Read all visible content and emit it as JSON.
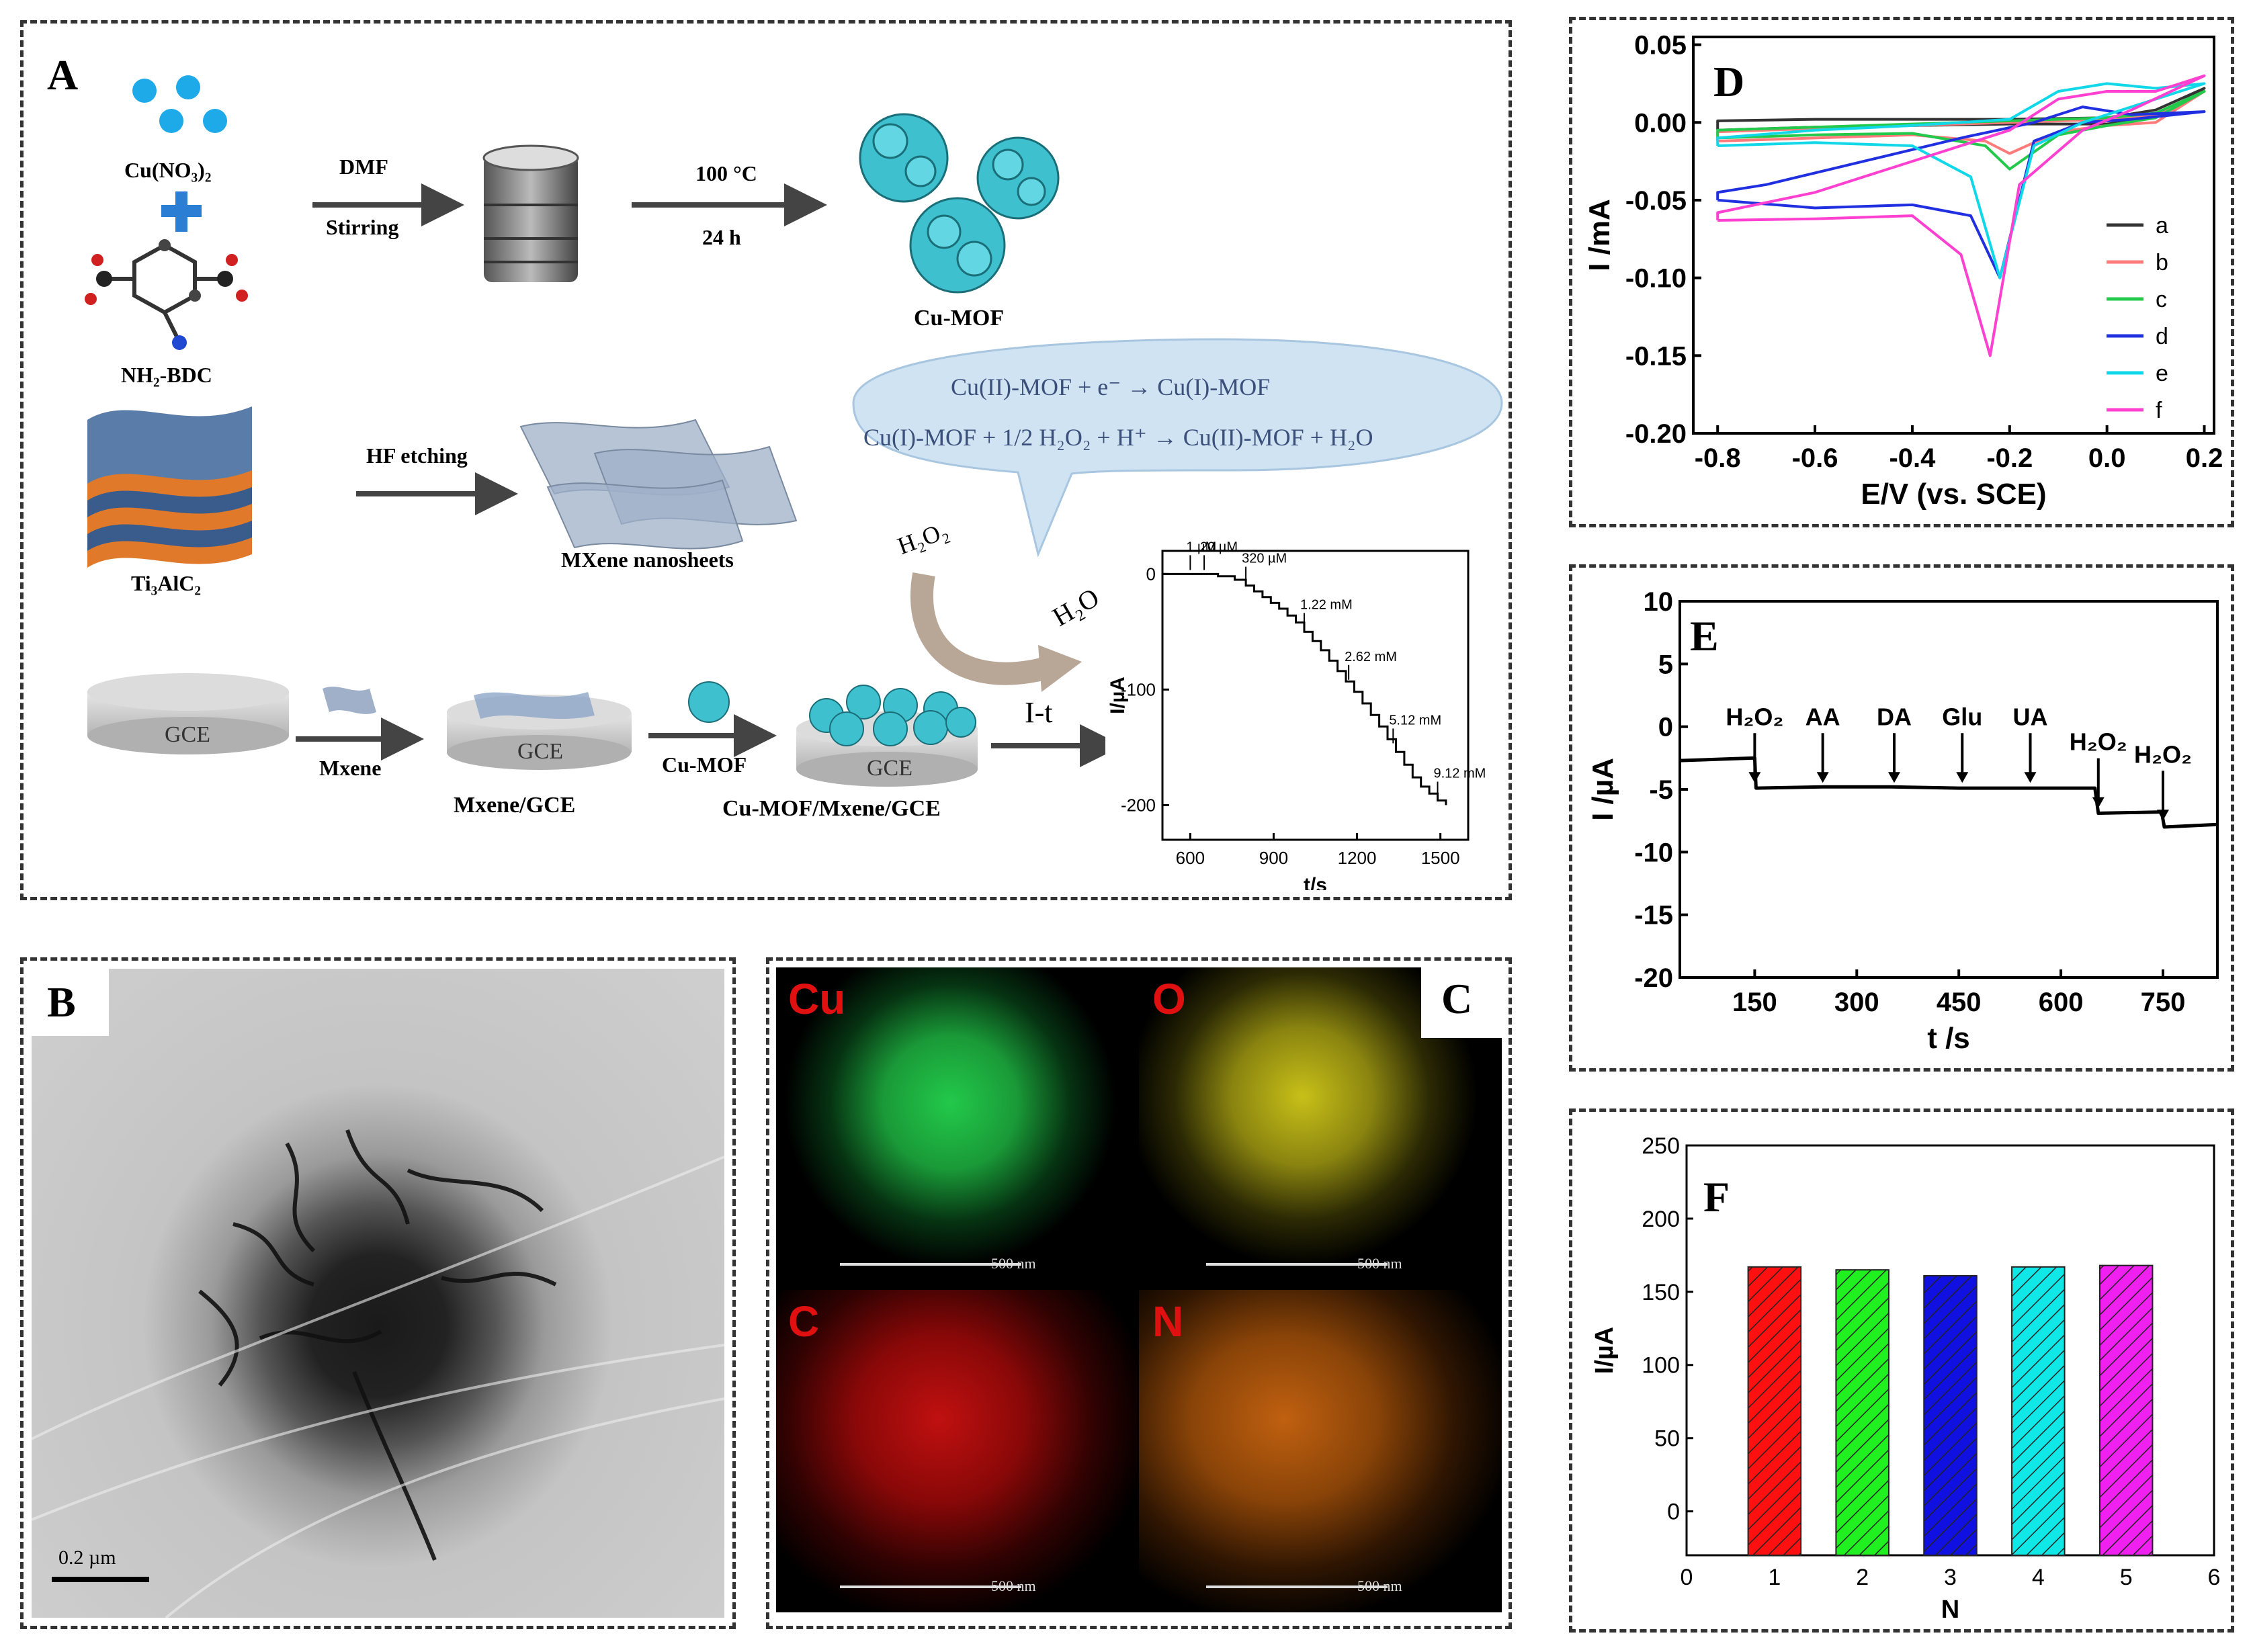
{
  "panels": {
    "A": "A",
    "B": "B",
    "C": "C",
    "D": "D",
    "E": "E",
    "F": "F"
  },
  "schematic": {
    "reagent1": "Cu(NO₃)₂",
    "reagent2": "NH₂-BDC",
    "step1_top": "DMF",
    "step1_bottom": "Stirring",
    "step2_top": "100 °C",
    "step2_bottom": "24 h",
    "product1": "Cu-MOF",
    "precursor": "Ti₃AlC₂",
    "etch": "HF etching",
    "product2": "MXene nanosheets",
    "reaction1": "Cu(II)-MOF + e⁻ → Cu(I)-MOF",
    "reaction2": "Cu(I)-MOF + 1/2 H₂O₂ + H⁺ →  Cu(II)-MOF + H₂O",
    "h2o2": "H₂O₂",
    "h2o": "H₂O",
    "gce1": "GCE",
    "gce2": "GCE",
    "gce3": "GCE",
    "arrow_mxene": "Mxene",
    "arrow_cumof": "Cu-MOF",
    "arrow_it": "I-t",
    "label_mxene_gce": "Mxene/GCE",
    "label_cumof_mxene_gce": "Cu-MOF/Mxene/GCE"
  },
  "tem": {
    "scale_label": "0.2 µm"
  },
  "mapping": {
    "elements": [
      "Cu",
      "O",
      "C",
      "N"
    ],
    "colors": [
      "#22c94a",
      "#d8d020",
      "#e01010",
      "#e07810"
    ],
    "scale_label": "500 nm"
  },
  "chart_data": [
    {
      "id": "inset-it",
      "type": "line",
      "xlabel": "t/s",
      "ylabel": "I/µA",
      "xlim": [
        500,
        1600
      ],
      "ylim": [
        -230,
        20
      ],
      "xticks": [
        600,
        900,
        1200,
        1500
      ],
      "yticks": [
        0,
        -100,
        -200
      ],
      "x": [
        500,
        600,
        640,
        700,
        760,
        800,
        830,
        860,
        890,
        920,
        950,
        980,
        1010,
        1040,
        1070,
        1100,
        1130,
        1160,
        1190,
        1220,
        1250,
        1280,
        1310,
        1340,
        1370,
        1400,
        1430,
        1460,
        1490,
        1520
      ],
      "y": [
        0,
        0,
        0,
        -2,
        -5,
        -10,
        -15,
        -20,
        -25,
        -30,
        -36,
        -42,
        -50,
        -58,
        -66,
        -75,
        -84,
        -93,
        -102,
        -112,
        -122,
        -132,
        -143,
        -154,
        -165,
        -176,
        -184,
        -190,
        -196,
        -200
      ],
      "annotations": [
        {
          "text": "1 µM",
          "x": 600,
          "y": 0
        },
        {
          "text": "20 µM",
          "x": 650,
          "y": 0
        },
        {
          "text": "320 µM",
          "x": 800,
          "y": -10
        },
        {
          "text": "1.22 mM",
          "x": 1010,
          "y": -50
        },
        {
          "text": "2.62 mM",
          "x": 1170,
          "y": -95
        },
        {
          "text": "5.12 mM",
          "x": 1330,
          "y": -150
        },
        {
          "text": "9.12 mM",
          "x": 1490,
          "y": -196
        }
      ]
    },
    {
      "id": "panel-d",
      "type": "line",
      "xlabel": "E/V (vs. SCE)",
      "ylabel": "I /mA",
      "xlim": [
        -0.85,
        0.22
      ],
      "ylim": [
        -0.2,
        0.055
      ],
      "xticks": [
        "-0.8",
        "-0.6",
        "-0.4",
        "-0.2",
        "0.0",
        "0.2"
      ],
      "yticks": [
        "0.05",
        "0.00",
        "-0.05",
        "-0.10",
        "-0.15",
        "-0.20"
      ],
      "legend_position": "right",
      "series": [
        {
          "name": "a",
          "color": "#333333",
          "x": [
            -0.8,
            -0.6,
            -0.4,
            -0.2,
            0.0,
            0.1,
            0.2,
            0.2,
            0.1,
            0.0,
            -0.2,
            -0.4,
            -0.6,
            -0.8,
            -0.8
          ],
          "y": [
            -0.005,
            -0.003,
            -0.002,
            -0.001,
            -0.001,
            0.003,
            0.022,
            0.022,
            0.008,
            0.003,
            0.002,
            0.002,
            0.002,
            0.001,
            -0.005
          ]
        },
        {
          "name": "b",
          "color": "#ff7a7a",
          "x": [
            -0.8,
            -0.6,
            -0.4,
            -0.25,
            -0.2,
            -0.1,
            0.0,
            0.1,
            0.2,
            0.2,
            0.1,
            0.0,
            -0.2,
            -0.4,
            -0.6,
            -0.8,
            -0.8
          ],
          "y": [
            -0.012,
            -0.01,
            -0.008,
            -0.012,
            -0.02,
            -0.006,
            -0.002,
            0.0,
            0.02,
            0.02,
            0.005,
            0.002,
            0.0,
            -0.002,
            -0.004,
            -0.006,
            -0.012
          ]
        },
        {
          "name": "c",
          "color": "#22c94a",
          "x": [
            -0.8,
            -0.6,
            -0.4,
            -0.25,
            -0.2,
            -0.1,
            0.0,
            0.1,
            0.2,
            0.2,
            0.1,
            0.0,
            -0.2,
            -0.4,
            -0.6,
            -0.8,
            -0.8
          ],
          "y": [
            -0.01,
            -0.008,
            -0.007,
            -0.015,
            -0.03,
            -0.008,
            -0.002,
            0.003,
            0.02,
            0.02,
            0.006,
            0.003,
            0.001,
            -0.001,
            -0.003,
            -0.005,
            -0.01
          ]
        },
        {
          "name": "d",
          "color": "#2030e0",
          "x": [
            -0.8,
            -0.6,
            -0.4,
            -0.28,
            -0.22,
            -0.15,
            -0.05,
            0.05,
            0.2,
            0.2,
            0.05,
            -0.05,
            -0.15,
            -0.3,
            -0.5,
            -0.7,
            -0.8,
            -0.8
          ],
          "y": [
            -0.05,
            -0.055,
            -0.053,
            -0.06,
            -0.1,
            -0.012,
            0.0,
            0.002,
            0.007,
            0.007,
            0.005,
            0.01,
            0.0,
            -0.01,
            -0.025,
            -0.04,
            -0.045,
            -0.05
          ]
        },
        {
          "name": "e",
          "color": "#10d8e8",
          "x": [
            -0.8,
            -0.6,
            -0.4,
            -0.28,
            -0.22,
            -0.15,
            -0.05,
            0.05,
            0.2,
            0.2,
            0.1,
            0.0,
            -0.1,
            -0.2,
            -0.4,
            -0.6,
            -0.8,
            -0.8
          ],
          "y": [
            -0.015,
            -0.013,
            -0.015,
            -0.035,
            -0.1,
            -0.015,
            0.0,
            0.01,
            0.025,
            0.025,
            0.022,
            0.025,
            0.02,
            0.002,
            -0.002,
            -0.005,
            -0.01,
            -0.015
          ]
        },
        {
          "name": "f",
          "color": "#ff40d0",
          "x": [
            -0.8,
            -0.6,
            -0.4,
            -0.3,
            -0.24,
            -0.18,
            -0.05,
            0.05,
            0.2,
            0.2,
            0.1,
            0.0,
            -0.1,
            -0.2,
            -0.4,
            -0.6,
            -0.8,
            -0.8
          ],
          "y": [
            -0.063,
            -0.062,
            -0.06,
            -0.085,
            -0.15,
            -0.04,
            -0.005,
            0.008,
            0.03,
            0.03,
            0.02,
            0.02,
            0.015,
            -0.005,
            -0.025,
            -0.045,
            -0.058,
            -0.063
          ]
        }
      ]
    },
    {
      "id": "panel-e",
      "type": "line",
      "xlabel": "t /s",
      "ylabel": "I /µA",
      "xlim": [
        40,
        830
      ],
      "ylim": [
        -20,
        10
      ],
      "xticks": [
        150,
        300,
        450,
        600,
        750
      ],
      "yticks": [
        10,
        5,
        0,
        -5,
        -10,
        -15,
        -20
      ],
      "series": [
        {
          "name": "",
          "color": "#000000",
          "x": [
            40,
            150,
            152,
            250,
            350,
            450,
            550,
            650,
            655,
            748,
            752,
            830
          ],
          "y": [
            -2.7,
            -2.5,
            -4.9,
            -4.8,
            -4.8,
            -4.9,
            -4.9,
            -4.9,
            -6.9,
            -6.8,
            -8.0,
            -7.8
          ]
        }
      ],
      "annotations": [
        {
          "text": "H₂O₂",
          "x": 150
        },
        {
          "text": "AA",
          "x": 250
        },
        {
          "text": "DA",
          "x": 355
        },
        {
          "text": "Glu",
          "x": 455
        },
        {
          "text": "UA",
          "x": 555
        },
        {
          "text": "H₂O₂",
          "x": 655
        },
        {
          "text": "H₂O₂",
          "x": 750
        }
      ]
    },
    {
      "id": "panel-f",
      "type": "bar",
      "xlabel": "N",
      "ylabel": "I/µA",
      "xlim": [
        0,
        6
      ],
      "ylim": [
        -30,
        250
      ],
      "xticks": [
        "0",
        "1",
        "2",
        "3",
        "4",
        "5",
        "6"
      ],
      "yticks": [
        "0",
        "50",
        "100",
        "150",
        "200",
        "250"
      ],
      "categories": [
        1,
        2,
        3,
        4,
        5
      ],
      "values": [
        167,
        165,
        161,
        167,
        168
      ],
      "colors": [
        "#ff1010",
        "#20f020",
        "#1010e0",
        "#10e8e8",
        "#f020f0"
      ]
    }
  ]
}
